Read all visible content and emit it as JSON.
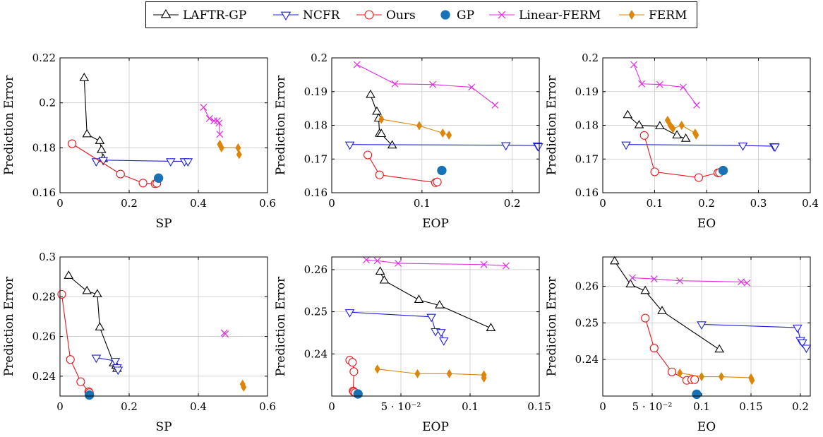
{
  "series_styles": {
    "LAFTR-GP": {
      "color": "#000000",
      "marker": "triangle-up-open",
      "line": true
    },
    "NCFR": {
      "color": "#1f1fdd",
      "marker": "triangle-down-open",
      "line": true
    },
    "Ours": {
      "color": "#e8151b",
      "marker": "circle-open",
      "line": true
    },
    "GP": {
      "color": "#1872b5",
      "marker": "circle-filled",
      "line": false
    },
    "Linear-FERM": {
      "color": "#e22ee0",
      "marker": "x",
      "line": true
    },
    "FERM": {
      "color": "#de8409",
      "marker": "diamond-filled",
      "line": true
    }
  },
  "legend": {
    "entries": [
      "LAFTR-GP",
      "NCFR",
      "Ours",
      "GP",
      "Linear-FERM",
      "FERM"
    ]
  },
  "chart_data": [
    {
      "type": "line",
      "xlabel": "SP",
      "ylabel": "Prediction Error",
      "xlim": [
        0,
        0.6
      ],
      "ylim": [
        0.16,
        0.22
      ],
      "xticks": [
        0,
        0.2,
        0.4,
        0.6
      ],
      "xticklabels": [
        "0",
        "0.2",
        "0.4",
        "0.6"
      ],
      "yticks": [
        0.16,
        0.18,
        0.2,
        0.22
      ],
      "yticklabels": [
        "0.16",
        "0.18",
        "0.2",
        "0.22"
      ],
      "grid": true,
      "series": [
        {
          "name": "LAFTR-GP",
          "x": [
            0.07,
            0.078,
            0.115,
            0.12,
            0.125
          ],
          "y": [
            0.211,
            0.186,
            0.183,
            0.179,
            0.175
          ]
        },
        {
          "name": "NCFR",
          "x": [
            0.105,
            0.125,
            0.32,
            0.36,
            0.37
          ],
          "y": [
            0.174,
            0.1745,
            0.174,
            0.174,
            0.174
          ]
        },
        {
          "name": "Ours",
          "x": [
            0.035,
            0.175,
            0.24,
            0.275,
            0.28
          ],
          "y": [
            0.1818,
            0.1683,
            0.1643,
            0.164,
            0.1642
          ]
        },
        {
          "name": "GP",
          "x": [
            0.285
          ],
          "y": [
            0.1665
          ]
        },
        {
          "name": "Linear-FERM",
          "x": [
            0.415,
            0.432,
            0.445,
            0.455,
            0.46,
            0.462
          ],
          "y": [
            0.198,
            0.193,
            0.192,
            0.192,
            0.191,
            0.186
          ]
        },
        {
          "name": "FERM",
          "x": [
            0.462,
            0.467,
            0.515,
            0.518
          ],
          "y": [
            0.1815,
            0.18,
            0.18,
            0.177
          ]
        }
      ]
    },
    {
      "type": "line",
      "xlabel": "EOP",
      "ylabel": "Prediction Error",
      "xlim": [
        0,
        0.23
      ],
      "ylim": [
        0.16,
        0.2
      ],
      "xticks": [
        0,
        0.1,
        0.2
      ],
      "xticklabels": [
        "0",
        "0.1",
        "0.2"
      ],
      "yticks": [
        0.16,
        0.17,
        0.18,
        0.19,
        0.2
      ],
      "yticklabels": [
        "0.16",
        "0.17",
        "0.18",
        "0.19",
        "0.2"
      ],
      "grid": true,
      "series": [
        {
          "name": "LAFTR-GP",
          "x": [
            0.043,
            0.05,
            0.052,
            0.053,
            0.055,
            0.067
          ],
          "y": [
            0.189,
            0.184,
            0.182,
            0.1775,
            0.1774,
            0.174
          ]
        },
        {
          "name": "NCFR",
          "x": [
            0.02,
            0.193,
            0.228,
            0.229
          ],
          "y": [
            0.1743,
            0.1741,
            0.174,
            0.1738
          ]
        },
        {
          "name": "Ours",
          "x": [
            0.04,
            0.053,
            0.115,
            0.117
          ],
          "y": [
            0.1712,
            0.1653,
            0.163,
            0.1632
          ]
        },
        {
          "name": "GP",
          "x": [
            0.122
          ],
          "y": [
            0.1666
          ]
        },
        {
          "name": "Linear-FERM",
          "x": [
            0.028,
            0.07,
            0.112,
            0.155,
            0.181
          ],
          "y": [
            0.198,
            0.1923,
            0.1921,
            0.1913,
            0.186
          ]
        },
        {
          "name": "FERM",
          "x": [
            0.055,
            0.097,
            0.123,
            0.13
          ],
          "y": [
            0.1818,
            0.1799,
            0.1777,
            0.1771
          ]
        }
      ]
    },
    {
      "type": "line",
      "xlabel": "EO",
      "ylabel": "Prediction Error",
      "xlim": [
        0,
        0.4
      ],
      "ylim": [
        0.16,
        0.2
      ],
      "xticks": [
        0,
        0.1,
        0.2,
        0.3,
        0.4
      ],
      "xticklabels": [
        "0",
        "0.1",
        "0.2",
        "0.3",
        "0.4"
      ],
      "yticks": [
        0.16,
        0.17,
        0.18,
        0.19,
        0.2
      ],
      "yticklabels": [
        "0.16",
        "0.17",
        "0.18",
        "0.19",
        "0.2"
      ],
      "grid": true,
      "series": [
        {
          "name": "LAFTR-GP",
          "x": [
            0.048,
            0.07,
            0.11,
            0.143,
            0.16
          ],
          "y": [
            0.183,
            0.18,
            0.1797,
            0.177,
            0.176
          ]
        },
        {
          "name": "NCFR",
          "x": [
            0.045,
            0.27,
            0.33,
            0.332
          ],
          "y": [
            0.1743,
            0.174,
            0.1738,
            0.1737
          ]
        },
        {
          "name": "Ours",
          "x": [
            0.08,
            0.1,
            0.185,
            0.222,
            0.225
          ],
          "y": [
            0.177,
            0.1662,
            0.1645,
            0.1659,
            0.166
          ]
        },
        {
          "name": "GP",
          "x": [
            0.232
          ],
          "y": [
            0.1666
          ]
        },
        {
          "name": "Linear-FERM",
          "x": [
            0.06,
            0.075,
            0.11,
            0.155,
            0.181
          ],
          "y": [
            0.198,
            0.1923,
            0.1921,
            0.1913,
            0.186
          ]
        },
        {
          "name": "FERM",
          "x": [
            0.125,
            0.13,
            0.135,
            0.152,
            0.178,
            0.18
          ],
          "y": [
            0.1815,
            0.18,
            0.179,
            0.18,
            0.1777,
            0.1771
          ]
        }
      ]
    },
    {
      "type": "line",
      "xlabel": "SP",
      "ylabel": "Prediction Error",
      "xlim": [
        0,
        0.6
      ],
      "ylim": [
        0.23,
        0.3
      ],
      "xticks": [
        0,
        0.2,
        0.4,
        0.6
      ],
      "xticklabels": [
        "0",
        "0.2",
        "0.4",
        "0.6"
      ],
      "yticks": [
        0.24,
        0.26,
        0.28,
        0.3
      ],
      "yticklabels": [
        "0.24",
        "0.26",
        "0.28",
        "0.3"
      ],
      "grid": true,
      "series": [
        {
          "name": "LAFTR-GP",
          "x": [
            0.025,
            0.078,
            0.108,
            0.115,
            0.155,
            0.162,
            0.165
          ],
          "y": [
            0.2905,
            0.2828,
            0.2812,
            0.2645,
            0.2465,
            0.2452,
            0.2437
          ]
        },
        {
          "name": "NCFR",
          "x": [
            0.105,
            0.16,
            0.165,
            0.168
          ],
          "y": [
            0.2493,
            0.2477,
            0.2445,
            0.2433
          ]
        },
        {
          "name": "Ours",
          "x": [
            0.005,
            0.03,
            0.06,
            0.083,
            0.085
          ],
          "y": [
            0.2812,
            0.2484,
            0.2372,
            0.2322,
            0.2317
          ]
        },
        {
          "name": "GP",
          "x": [
            0.085
          ],
          "y": [
            0.2305
          ]
        },
        {
          "name": "Linear-FERM",
          "x": [
            0.475,
            0.478
          ],
          "y": [
            0.2618,
            0.2612
          ]
        },
        {
          "name": "FERM",
          "x": [
            0.528,
            0.531
          ],
          "y": [
            0.236,
            0.2345
          ]
        }
      ]
    },
    {
      "type": "line",
      "xlabel": "EOP",
      "ylabel": "Prediction Error",
      "xlim": [
        0,
        0.15
      ],
      "ylim": [
        0.23,
        0.263
      ],
      "xticks": [
        0,
        0.05,
        0.1,
        0.15
      ],
      "xticklabels": [
        "0",
        "5 · 10⁻²",
        "0.1",
        "0.15"
      ],
      "yticks": [
        0.24,
        0.25,
        0.26
      ],
      "yticklabels": [
        "0.24",
        "0.25",
        "0.26"
      ],
      "grid": true,
      "series": [
        {
          "name": "LAFTR-GP",
          "x": [
            0.035,
            0.038,
            0.063,
            0.078,
            0.115
          ],
          "y": [
            0.2595,
            0.2574,
            0.2528,
            0.2515,
            0.2461
          ]
        },
        {
          "name": "NCFR",
          "x": [
            0.013,
            0.072,
            0.075,
            0.079,
            0.081
          ],
          "y": [
            0.2499,
            0.2488,
            0.2454,
            0.2452,
            0.2432
          ]
        },
        {
          "name": "Ours",
          "x": [
            0.013,
            0.015,
            0.016,
            0.0155,
            0.016,
            0.017
          ],
          "y": [
            0.2385,
            0.238,
            0.2358,
            0.2312,
            0.231,
            0.2308
          ]
        },
        {
          "name": "GP",
          "x": [
            0.019
          ],
          "y": [
            0.2305
          ]
        },
        {
          "name": "Linear-FERM",
          "x": [
            0.025,
            0.033,
            0.048,
            0.11,
            0.126
          ],
          "y": [
            0.2623,
            0.2621,
            0.2615,
            0.2612,
            0.2609
          ]
        },
        {
          "name": "FERM",
          "x": [
            0.033,
            0.062,
            0.085,
            0.11,
            0.11
          ],
          "y": [
            0.2364,
            0.2353,
            0.2353,
            0.235,
            0.2343
          ]
        }
      ]
    },
    {
      "type": "line",
      "xlabel": "EO",
      "ylabel": "Prediction Error",
      "xlim": [
        0,
        0.21
      ],
      "ylim": [
        0.23,
        0.268
      ],
      "xticks": [
        0,
        0.05,
        0.1,
        0.15,
        0.2
      ],
      "xticklabels": [
        "0",
        "5 · 10⁻²",
        "0.1",
        "0.15",
        "0.2"
      ],
      "yticks": [
        0.24,
        0.25,
        0.26
      ],
      "yticklabels": [
        "0.24",
        "0.25",
        "0.26"
      ],
      "grid": true,
      "series": [
        {
          "name": "LAFTR-GP",
          "x": [
            0.012,
            0.028,
            0.043,
            0.06,
            0.118
          ],
          "y": [
            0.2668,
            0.2605,
            0.2587,
            0.2532,
            0.2427
          ]
        },
        {
          "name": "NCFR",
          "x": [
            0.1,
            0.197,
            0.2,
            0.202,
            0.206
          ],
          "y": [
            0.2496,
            0.2487,
            0.2453,
            0.2447,
            0.2432
          ]
        },
        {
          "name": "Ours",
          "x": [
            0.043,
            0.052,
            0.07,
            0.085,
            0.09,
            0.093
          ],
          "y": [
            0.2513,
            0.2431,
            0.2366,
            0.2343,
            0.2345,
            0.2345
          ]
        },
        {
          "name": "GP",
          "x": [
            0.095
          ],
          "y": [
            0.2305
          ]
        },
        {
          "name": "Linear-FERM",
          "x": [
            0.03,
            0.052,
            0.078,
            0.14,
            0.146
          ],
          "y": [
            0.2623,
            0.262,
            0.2615,
            0.2612,
            0.2609
          ]
        },
        {
          "name": "FERM",
          "x": [
            0.078,
            0.1,
            0.12,
            0.15,
            0.151
          ],
          "y": [
            0.2363,
            0.2353,
            0.2353,
            0.235,
            0.2343
          ]
        }
      ]
    }
  ]
}
